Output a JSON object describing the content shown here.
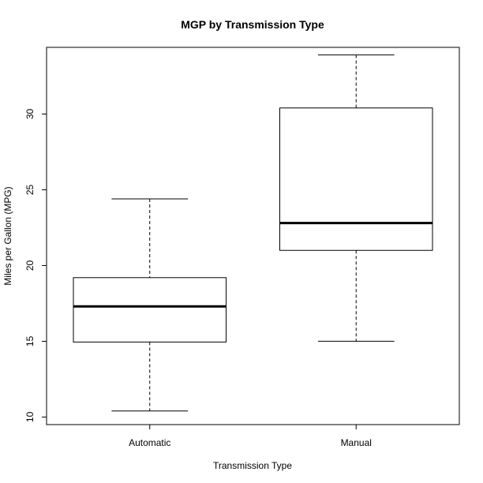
{
  "chart_data": {
    "type": "boxplot",
    "title": "MGP by Transmission Type",
    "xlabel": "Transmission Type",
    "ylabel": "Miles per Gallon (MPG)",
    "ylim": [
      9.5,
      34.4
    ],
    "yticks": [
      10,
      15,
      20,
      25,
      30
    ],
    "grid": false,
    "categories": [
      "Automatic",
      "Manual"
    ],
    "boxes": [
      {
        "category": "Automatic",
        "whisker_low": 10.4,
        "q1": 14.95,
        "median": 17.3,
        "q3": 19.2,
        "whisker_high": 24.4
      },
      {
        "category": "Manual",
        "whisker_low": 15.0,
        "q1": 21.0,
        "median": 22.8,
        "q3": 30.4,
        "whisker_high": 33.9
      }
    ]
  },
  "colors": {
    "stroke": "#000000",
    "background": "#ffffff"
  }
}
